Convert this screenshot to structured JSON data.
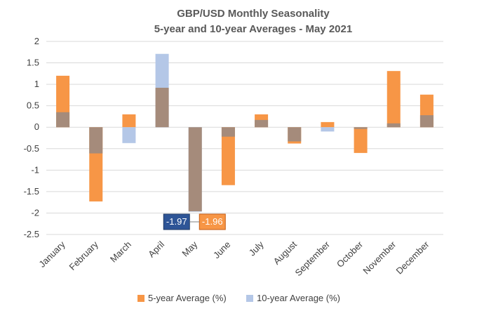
{
  "chart_data": {
    "type": "bar",
    "title": "GBP/USD Monthly Seasonality",
    "subtitle": "5-year and 10-year Averages - May 2021",
    "categories": [
      "January",
      "February",
      "March",
      "April",
      "May",
      "June",
      "July",
      "August",
      "September",
      "October",
      "November",
      "December"
    ],
    "series": [
      {
        "name": "5-year Average (%)",
        "color": "#f79646",
        "values": [
          1.2,
          -1.73,
          0.3,
          0.92,
          -1.96,
          -1.35,
          0.3,
          -0.38,
          0.12,
          -0.6,
          1.31,
          0.76
        ]
      },
      {
        "name": "10-year Average (%)",
        "color": "#b4c7e7",
        "values": [
          0.35,
          -0.61,
          -0.37,
          1.71,
          -1.97,
          -0.22,
          0.17,
          -0.33,
          -0.1,
          -0.04,
          0.09,
          0.28
        ]
      }
    ],
    "overlap_color": "#a58b7b",
    "ylim": [
      -2.5,
      2
    ],
    "yticks": [
      2,
      1.5,
      1,
      0.5,
      0,
      -0.5,
      -1,
      -1.5,
      -2,
      -2.5
    ],
    "ytick_labels": [
      "2",
      "1.5",
      "1",
      "0.5",
      "0",
      "-0.5",
      "-1",
      "-1.5",
      "-2",
      "-2.5"
    ],
    "grid": true,
    "legend": "bottom",
    "callouts": [
      {
        "label": "-1.97",
        "series": "10-year Average (%)",
        "category": "May",
        "color": "#2e5597"
      },
      {
        "label": "-1.96",
        "series": "5-year Average (%)",
        "category": "May",
        "color": "#f79646"
      }
    ]
  }
}
